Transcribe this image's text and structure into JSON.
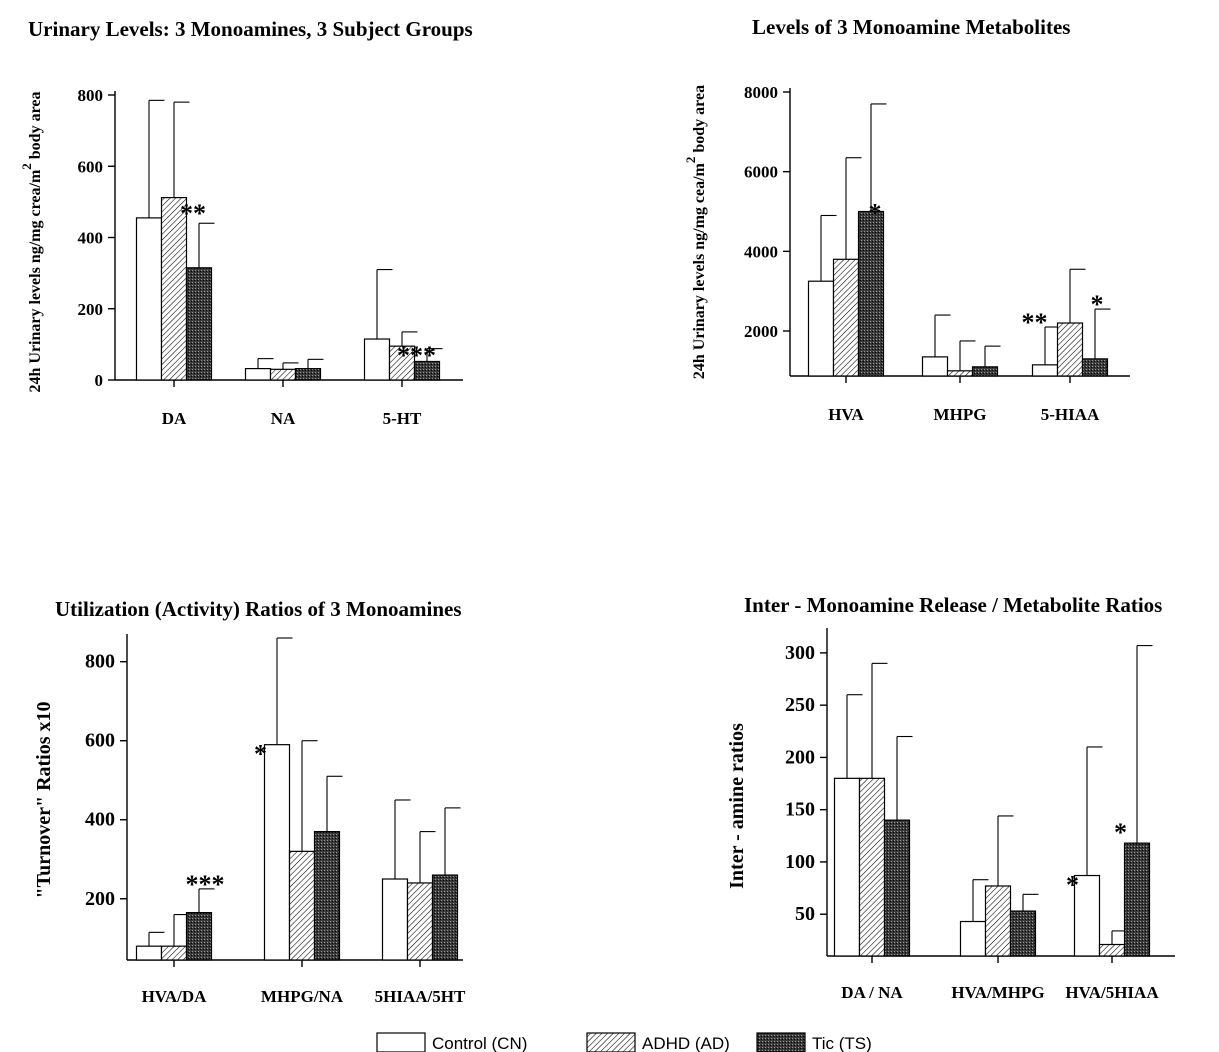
{
  "colors": {
    "control": "#ffffff",
    "adhd": "hatch-light",
    "tic": "hatch-dark",
    "ink": "#000000"
  },
  "legend": {
    "items": [
      {
        "key": "control",
        "label": "Control (CN)"
      },
      {
        "key": "adhd",
        "label": "ADHD (AD)"
      },
      {
        "key": "tic",
        "label": "Tic (TS)"
      }
    ]
  },
  "chart_data": [
    {
      "type": "bar",
      "title": "Urinary Levels: 3 Monoamines, 3 Subject Groups",
      "ylabel": "24h Urinary levels ng/mg crea/m",
      "ylabel_sup": "2",
      "ylabel_tail": " body area",
      "ylim": [
        0,
        800
      ],
      "yticks": [
        0,
        200,
        400,
        600,
        800
      ],
      "categories": [
        "DA",
        "NA",
        "5-HT"
      ],
      "series": [
        {
          "key": "control",
          "values": [
            455,
            32,
            115
          ],
          "err_upper": [
            785,
            60,
            310
          ]
        },
        {
          "key": "adhd",
          "values": [
            512,
            30,
            95
          ],
          "err_upper": [
            780,
            48,
            135
          ]
        },
        {
          "key": "tic",
          "values": [
            315,
            32,
            52
          ],
          "err_upper": [
            440,
            58,
            88
          ]
        }
      ],
      "annotations": [
        {
          "category": 0,
          "series": 2,
          "text": "**"
        },
        {
          "category": 2,
          "series": 1,
          "text": "***"
        }
      ]
    },
    {
      "type": "bar",
      "title": "Levels of 3 Monoamine Metabolites",
      "ylabel": "24h Urinary levels ng/mg cea/m",
      "ylabel_sup": "2",
      "ylabel_tail": " body area",
      "ylim": [
        870,
        8000
      ],
      "yticks": [
        2000,
        4000,
        6000,
        8000
      ],
      "categories": [
        "HVA",
        "MHPG",
        "5-HIAA"
      ],
      "series": [
        {
          "key": "control",
          "values": [
            3250,
            1350,
            1150
          ],
          "err_upper": [
            4900,
            2400,
            2100
          ]
        },
        {
          "key": "adhd",
          "values": [
            3800,
            1000,
            2200
          ],
          "err_upper": [
            6350,
            1750,
            3550
          ]
        },
        {
          "key": "tic",
          "values": [
            5000,
            1100,
            1300
          ],
          "err_upper": [
            7700,
            1620,
            2550
          ]
        }
      ],
      "annotations": [
        {
          "category": 0,
          "series": 2,
          "text": "*"
        },
        {
          "category": 2,
          "series": 0,
          "text": "**"
        },
        {
          "category": 2,
          "series": 2,
          "text": "*"
        }
      ]
    },
    {
      "type": "bar",
      "title": "Utilization (Activity) Ratios of 3 Monoamines",
      "ylabel": "\"Turnover\" Ratios x10",
      "ylim": [
        45,
        860
      ],
      "yticks": [
        200,
        400,
        600,
        800
      ],
      "categories": [
        "HVA/DA",
        "MHPG/NA",
        "5HIAA/5HT"
      ],
      "series": [
        {
          "key": "control",
          "values": [
            80,
            590,
            250
          ],
          "err_upper": [
            115,
            860,
            450
          ]
        },
        {
          "key": "adhd",
          "values": [
            80,
            320,
            240
          ],
          "err_upper": [
            160,
            600,
            370
          ]
        },
        {
          "key": "tic",
          "values": [
            165,
            370,
            260
          ],
          "err_upper": [
            225,
            510,
            430
          ]
        }
      ],
      "annotations": [
        {
          "category": 0,
          "series": 2,
          "text": "***"
        },
        {
          "category": 1,
          "series": 0,
          "text": "*"
        }
      ]
    },
    {
      "type": "bar",
      "title": "Inter - Monoamine Release / Metabolite Ratios",
      "ylabel": "Inter - amine ratios",
      "ylim": [
        10,
        320
      ],
      "yticks": [
        50,
        100,
        150,
        200,
        250,
        300
      ],
      "categories": [
        "DA / NA",
        "HVA/MHPG",
        "HVA/5HIAA"
      ],
      "series": [
        {
          "key": "control",
          "values": [
            180,
            43,
            87
          ],
          "err_upper": [
            260,
            83,
            210
          ]
        },
        {
          "key": "adhd",
          "values": [
            180,
            77,
            21
          ],
          "err_upper": [
            290,
            144,
            34
          ]
        },
        {
          "key": "tic",
          "values": [
            140,
            53,
            118
          ],
          "err_upper": [
            220,
            69,
            307
          ]
        }
      ],
      "annotations": [
        {
          "category": 2,
          "series": 0,
          "text": "*"
        },
        {
          "category": 2,
          "series": 2,
          "text": "*"
        }
      ]
    }
  ]
}
